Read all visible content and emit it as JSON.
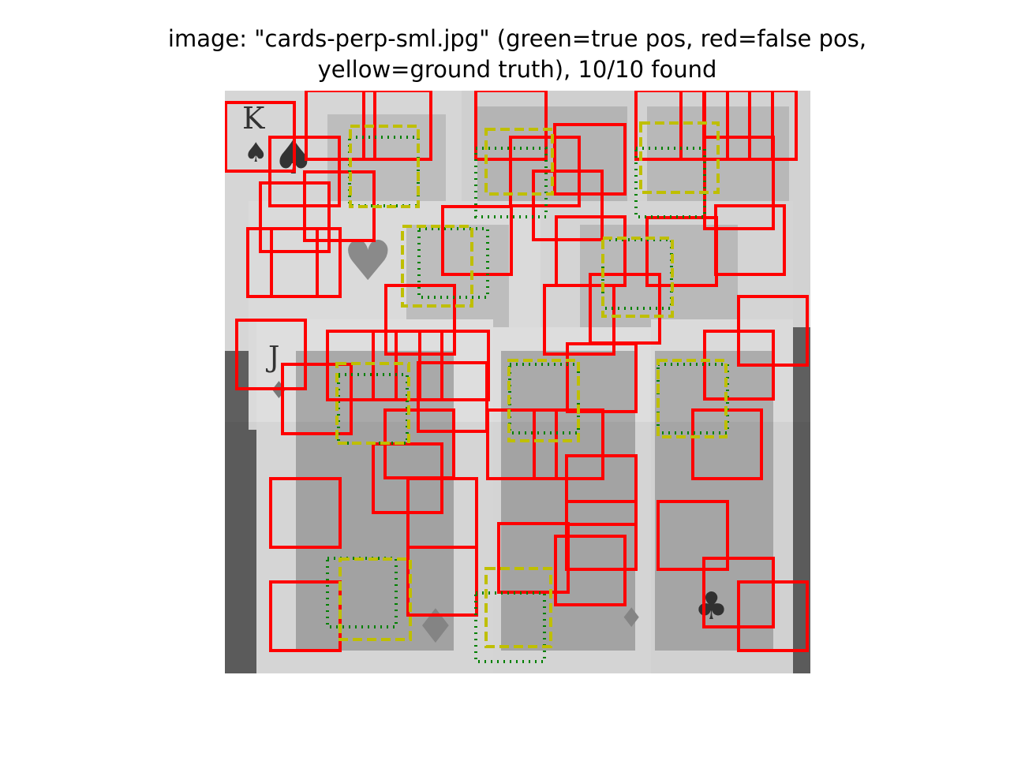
{
  "title": {
    "line1": "image: \"cards-perp-sml.jpg\" (green=true pos, red=false pos,",
    "line2": "yellow=ground truth), 10/10 found"
  },
  "legend_colors": {
    "true_positive": "#008000",
    "false_positive": "#ff0000",
    "ground_truth": "#bfbf00"
  },
  "photo_description_colors": {
    "table": "#6b6b6b",
    "card": "#dcdcdc",
    "ink": "#3a3a3a"
  }
}
